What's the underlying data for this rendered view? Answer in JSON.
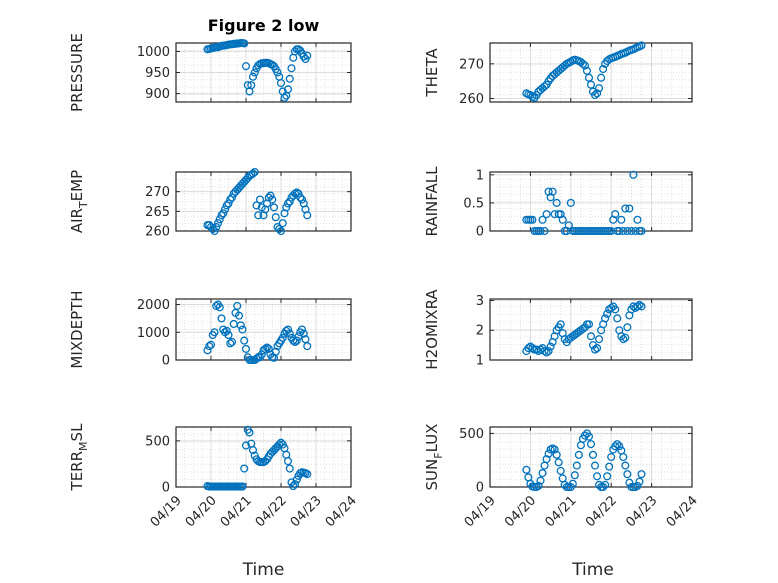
{
  "figure": {
    "title": "Figure 2 low",
    "xlabel": "Time"
  },
  "style": {
    "marker_color": "#0072BD",
    "axes_color": "#262626",
    "grid_color": "#d9d9d9",
    "background": "#ffffff"
  },
  "chart_data": [
    {
      "type": "scatter",
      "marker": "circle",
      "title": "Figure 2 low",
      "ylabel": "PRESSURE",
      "ylabel_sub": null,
      "ylim": [
        880,
        1020
      ],
      "yticks": [
        900,
        950,
        1000
      ],
      "xlim": [
        0,
        5
      ],
      "xticks": [],
      "x": [
        0.9,
        0.95,
        1.0,
        1.05,
        1.1,
        1.15,
        1.2,
        1.25,
        1.3,
        1.35,
        1.4,
        1.45,
        1.5,
        1.55,
        1.6,
        1.65,
        1.7,
        1.75,
        1.8,
        1.85,
        1.9,
        1.95,
        2.0,
        2.05,
        2.1,
        2.15,
        2.2,
        2.25,
        2.3,
        2.35,
        2.4,
        2.45,
        2.5,
        2.55,
        2.6,
        2.65,
        2.7,
        2.75,
        2.8,
        2.85,
        2.9,
        2.95,
        3.0,
        3.05,
        3.1,
        3.15,
        3.2,
        3.25,
        3.3,
        3.35,
        3.4,
        3.45,
        3.5,
        3.55,
        3.6,
        3.65,
        3.7,
        3.75
      ],
      "y": [
        1005,
        1006,
        1007,
        1008,
        1009,
        1010,
        1010,
        1012,
        1013,
        1014,
        1014,
        1015,
        1016,
        1017,
        1017,
        1018,
        1018,
        1019,
        1019,
        1020,
        1020,
        1019,
        965,
        920,
        905,
        920,
        940,
        950,
        960,
        967,
        970,
        972,
        972,
        973,
        973,
        972,
        970,
        968,
        965,
        958,
        950,
        940,
        925,
        905,
        890,
        895,
        910,
        935,
        960,
        985,
        1000,
        1005,
        1005,
        1002,
        995,
        988,
        982,
        990
      ]
    },
    {
      "type": "scatter",
      "marker": "circle",
      "ylabel": "THETA",
      "ylabel_sub": null,
      "ylim": [
        259,
        276
      ],
      "yticks": [
        260,
        270
      ],
      "xlim": [
        0,
        5
      ],
      "xticks": [],
      "x": [
        0.9,
        0.95,
        1.0,
        1.05,
        1.1,
        1.15,
        1.2,
        1.25,
        1.3,
        1.35,
        1.4,
        1.45,
        1.5,
        1.55,
        1.6,
        1.65,
        1.7,
        1.75,
        1.8,
        1.85,
        1.9,
        1.95,
        2.0,
        2.05,
        2.1,
        2.15,
        2.2,
        2.25,
        2.3,
        2.35,
        2.4,
        2.45,
        2.5,
        2.55,
        2.6,
        2.65,
        2.7,
        2.75,
        2.8,
        2.85,
        2.9,
        2.95,
        3.0,
        3.05,
        3.1,
        3.15,
        3.2,
        3.25,
        3.3,
        3.35,
        3.4,
        3.45,
        3.5,
        3.55,
        3.6,
        3.65,
        3.7,
        3.75
      ],
      "y": [
        261.5,
        261.2,
        261.0,
        260.5,
        260.2,
        261.0,
        262.0,
        262.5,
        263.0,
        263.5,
        264.0,
        265.0,
        265.8,
        266.5,
        267.0,
        267.5,
        268.0,
        268.5,
        269.0,
        269.5,
        270.0,
        270.3,
        270.6,
        271.0,
        271.2,
        271.0,
        270.8,
        270.5,
        270.0,
        269.5,
        268.0,
        266.0,
        264.0,
        262.0,
        261.0,
        261.5,
        263.0,
        266.0,
        268.5,
        270.0,
        270.8,
        271.3,
        271.6,
        271.8,
        272.0,
        272.3,
        272.5,
        272.8,
        273.0,
        273.2,
        273.5,
        273.8,
        274.0,
        274.2,
        274.5,
        274.8,
        275.0,
        275.3
      ]
    },
    {
      "type": "scatter",
      "marker": "circle",
      "ylabel": "AIR",
      "ylabel_sub": "T",
      "ylabel_after": "EMP",
      "ylim": [
        260,
        275
      ],
      "yticks": [
        260,
        265,
        270
      ],
      "xlim": [
        0,
        5
      ],
      "xticks": [],
      "x": [
        0.9,
        0.95,
        1.0,
        1.05,
        1.1,
        1.15,
        1.2,
        1.25,
        1.3,
        1.35,
        1.4,
        1.45,
        1.5,
        1.55,
        1.6,
        1.65,
        1.7,
        1.75,
        1.8,
        1.85,
        1.9,
        1.95,
        2.0,
        2.05,
        2.1,
        2.15,
        2.2,
        2.25,
        2.3,
        2.35,
        2.4,
        2.45,
        2.5,
        2.55,
        2.6,
        2.65,
        2.7,
        2.75,
        2.8,
        2.85,
        2.9,
        2.95,
        3.0,
        3.05,
        3.1,
        3.15,
        3.2,
        3.25,
        3.3,
        3.35,
        3.4,
        3.45,
        3.5,
        3.55,
        3.6,
        3.65,
        3.7,
        3.75
      ],
      "y": [
        261.5,
        261.5,
        261.0,
        260.5,
        260.0,
        261.0,
        262.0,
        263.0,
        264.0,
        264.5,
        265.5,
        266.5,
        267.0,
        268.0,
        268.5,
        269.5,
        270.0,
        270.5,
        271.0,
        271.5,
        272.0,
        272.5,
        273.0,
        273.5,
        274.0,
        274.3,
        274.6,
        275.0,
        266.5,
        264.0,
        268.0,
        266.0,
        264.0,
        265.5,
        267.0,
        268.5,
        269.0,
        268.0,
        266.0,
        263.5,
        261.0,
        260.5,
        260.0,
        262.0,
        264.5,
        266.0,
        267.0,
        267.5,
        268.5,
        269.0,
        269.5,
        269.8,
        269.5,
        268.5,
        268.0,
        267.0,
        265.5,
        264.0
      ]
    },
    {
      "type": "scatter",
      "marker": "circle",
      "ylabel": "RAINFALL",
      "ylabel_sub": null,
      "ylim": [
        0,
        1.05
      ],
      "yticks": [
        0,
        0.5,
        1
      ],
      "xlim": [
        0,
        5
      ],
      "xticks": [],
      "x": [
        0.9,
        0.95,
        1.0,
        1.05,
        1.1,
        1.15,
        1.2,
        1.25,
        1.3,
        1.35,
        1.4,
        1.45,
        1.5,
        1.55,
        1.6,
        1.65,
        1.7,
        1.75,
        1.8,
        1.85,
        1.9,
        1.95,
        2.0,
        2.05,
        2.1,
        2.15,
        2.2,
        2.25,
        2.3,
        2.35,
        2.4,
        2.45,
        2.5,
        2.55,
        2.6,
        2.65,
        2.7,
        2.75,
        2.8,
        2.85,
        2.9,
        2.95,
        3.0,
        3.05,
        3.1,
        3.15,
        3.2,
        3.25,
        3.3,
        3.35,
        3.4,
        3.45,
        3.5,
        3.55,
        3.6,
        3.65,
        3.7,
        3.75
      ],
      "y": [
        0.2,
        0.2,
        0.2,
        0.2,
        0.0,
        0.0,
        0.0,
        0.0,
        0.2,
        0.0,
        0.3,
        0.7,
        0.6,
        0.7,
        0.3,
        0.5,
        0.3,
        0.3,
        0.2,
        0.0,
        0.0,
        0.1,
        0.5,
        0.0,
        0.0,
        0.0,
        0.0,
        0.0,
        0.0,
        0.0,
        0.0,
        0.0,
        0.0,
        0.0,
        0.0,
        0.0,
        0.0,
        0.0,
        0.0,
        0.0,
        0.0,
        0.0,
        0.0,
        0.2,
        0.3,
        0.0,
        0.0,
        0.2,
        0.0,
        0.4,
        0.0,
        0.4,
        0.0,
        1.0,
        0.0,
        0.2,
        0.0,
        0.0
      ]
    },
    {
      "type": "scatter",
      "marker": "circle",
      "ylabel": "MIXDEPTH",
      "ylabel_sub": null,
      "ylim": [
        0,
        2200
      ],
      "yticks": [
        0,
        1000,
        2000
      ],
      "xlim": [
        0,
        5
      ],
      "xticks": [],
      "x": [
        0.9,
        0.95,
        1.0,
        1.05,
        1.1,
        1.15,
        1.2,
        1.25,
        1.3,
        1.35,
        1.4,
        1.45,
        1.5,
        1.55,
        1.6,
        1.65,
        1.7,
        1.75,
        1.8,
        1.85,
        1.9,
        1.95,
        2.0,
        2.05,
        2.1,
        2.15,
        2.2,
        2.25,
        2.3,
        2.35,
        2.4,
        2.45,
        2.5,
        2.55,
        2.6,
        2.65,
        2.7,
        2.75,
        2.8,
        2.85,
        2.9,
        2.95,
        3.0,
        3.05,
        3.1,
        3.15,
        3.2,
        3.25,
        3.3,
        3.35,
        3.4,
        3.45,
        3.5,
        3.55,
        3.6,
        3.65,
        3.7,
        3.75
      ],
      "y": [
        350,
        500,
        550,
        900,
        1000,
        1950,
        2000,
        1900,
        1500,
        1100,
        1000,
        1050,
        900,
        600,
        650,
        1300,
        1700,
        1950,
        1600,
        1250,
        1100,
        700,
        400,
        100,
        0,
        0,
        0,
        0,
        50,
        100,
        100,
        200,
        350,
        400,
        450,
        400,
        200,
        100,
        80,
        300,
        500,
        600,
        700,
        800,
        950,
        1050,
        1100,
        950,
        800,
        700,
        650,
        700,
        850,
        1000,
        1100,
        950,
        750,
        500
      ]
    },
    {
      "type": "scatter",
      "marker": "circle",
      "ylabel": "H2OMIXRA",
      "ylabel_sub": null,
      "ylim": [
        1,
        3.05
      ],
      "yticks": [
        1,
        2,
        3
      ],
      "xlim": [
        0,
        5
      ],
      "xticks": [],
      "x": [
        0.9,
        0.95,
        1.0,
        1.05,
        1.1,
        1.15,
        1.2,
        1.25,
        1.3,
        1.35,
        1.4,
        1.45,
        1.5,
        1.55,
        1.6,
        1.65,
        1.7,
        1.75,
        1.8,
        1.85,
        1.9,
        1.95,
        2.0,
        2.05,
        2.1,
        2.15,
        2.2,
        2.25,
        2.3,
        2.35,
        2.4,
        2.45,
        2.5,
        2.55,
        2.6,
        2.65,
        2.7,
        2.75,
        2.8,
        2.85,
        2.9,
        2.95,
        3.0,
        3.05,
        3.1,
        3.15,
        3.2,
        3.25,
        3.3,
        3.35,
        3.4,
        3.45,
        3.5,
        3.55,
        3.6,
        3.65,
        3.7,
        3.75
      ],
      "y": [
        1.3,
        1.4,
        1.45,
        1.4,
        1.35,
        1.35,
        1.3,
        1.35,
        1.4,
        1.3,
        1.25,
        1.3,
        1.45,
        1.6,
        1.8,
        2.0,
        2.1,
        2.2,
        1.9,
        1.7,
        1.6,
        1.7,
        1.75,
        1.8,
        1.85,
        1.9,
        1.95,
        2.0,
        2.05,
        2.1,
        2.2,
        2.2,
        1.8,
        1.5,
        1.35,
        1.4,
        1.7,
        2.0,
        2.2,
        2.4,
        2.55,
        2.7,
        2.75,
        2.8,
        2.7,
        2.4,
        2.0,
        1.8,
        1.7,
        1.75,
        2.1,
        2.5,
        2.7,
        2.8,
        2.75,
        2.8,
        2.85,
        2.8
      ]
    },
    {
      "type": "scatter",
      "marker": "circle",
      "ylabel": "TERR",
      "ylabel_sub": "M",
      "ylabel_after": "SL",
      "ylim": [
        0,
        650
      ],
      "yticks": [
        0,
        500
      ],
      "xlim": [
        0,
        5
      ],
      "xticks": [
        "04/19",
        "04/20",
        "04/21",
        "04/22",
        "04/23",
        "04/24"
      ],
      "x": [
        0.9,
        0.95,
        1.0,
        1.05,
        1.1,
        1.15,
        1.2,
        1.25,
        1.3,
        1.35,
        1.4,
        1.45,
        1.5,
        1.55,
        1.6,
        1.65,
        1.7,
        1.75,
        1.8,
        1.85,
        1.9,
        1.95,
        2.0,
        2.05,
        2.1,
        2.15,
        2.2,
        2.25,
        2.3,
        2.35,
        2.4,
        2.45,
        2.5,
        2.55,
        2.6,
        2.65,
        2.7,
        2.75,
        2.8,
        2.85,
        2.9,
        2.95,
        3.0,
        3.05,
        3.1,
        3.15,
        3.2,
        3.25,
        3.3,
        3.35,
        3.4,
        3.45,
        3.5,
        3.55,
        3.6,
        3.65,
        3.7,
        3.75
      ],
      "y": [
        10,
        5,
        5,
        5,
        5,
        5,
        5,
        5,
        5,
        5,
        5,
        5,
        5,
        5,
        5,
        5,
        5,
        5,
        5,
        5,
        5,
        200,
        450,
        620,
        590,
        470,
        400,
        340,
        300,
        280,
        270,
        270,
        270,
        280,
        300,
        330,
        360,
        380,
        400,
        420,
        440,
        460,
        480,
        460,
        420,
        350,
        280,
        200,
        50,
        10,
        30,
        80,
        120,
        150,
        160,
        155,
        150,
        140
      ]
    },
    {
      "type": "scatter",
      "marker": "circle",
      "ylabel": "SUN",
      "ylabel_sub": "F",
      "ylabel_after": "LUX",
      "ylim": [
        0,
        560
      ],
      "yticks": [
        0,
        500
      ],
      "xlim": [
        0,
        5
      ],
      "xticks": [
        "04/19",
        "04/20",
        "04/21",
        "04/22",
        "04/23",
        "04/24"
      ],
      "x": [
        0.9,
        0.95,
        1.0,
        1.05,
        1.1,
        1.15,
        1.2,
        1.25,
        1.3,
        1.35,
        1.4,
        1.45,
        1.5,
        1.55,
        1.6,
        1.65,
        1.7,
        1.75,
        1.8,
        1.85,
        1.9,
        1.95,
        2.0,
        2.05,
        2.1,
        2.15,
        2.2,
        2.25,
        2.3,
        2.35,
        2.4,
        2.45,
        2.5,
        2.55,
        2.6,
        2.65,
        2.7,
        2.75,
        2.8,
        2.85,
        2.9,
        2.95,
        3.0,
        3.05,
        3.1,
        3.15,
        3.2,
        3.25,
        3.3,
        3.35,
        3.4,
        3.45,
        3.5,
        3.55,
        3.6,
        3.65,
        3.7,
        3.75
      ],
      "y": [
        160,
        90,
        30,
        5,
        0,
        0,
        10,
        60,
        130,
        200,
        260,
        310,
        350,
        360,
        350,
        300,
        230,
        150,
        80,
        20,
        0,
        0,
        0,
        30,
        110,
        200,
        300,
        390,
        450,
        480,
        500,
        470,
        400,
        300,
        200,
        100,
        20,
        0,
        0,
        20,
        100,
        190,
        280,
        350,
        380,
        400,
        380,
        340,
        280,
        200,
        120,
        40,
        0,
        0,
        0,
        10,
        50,
        120
      ]
    }
  ]
}
